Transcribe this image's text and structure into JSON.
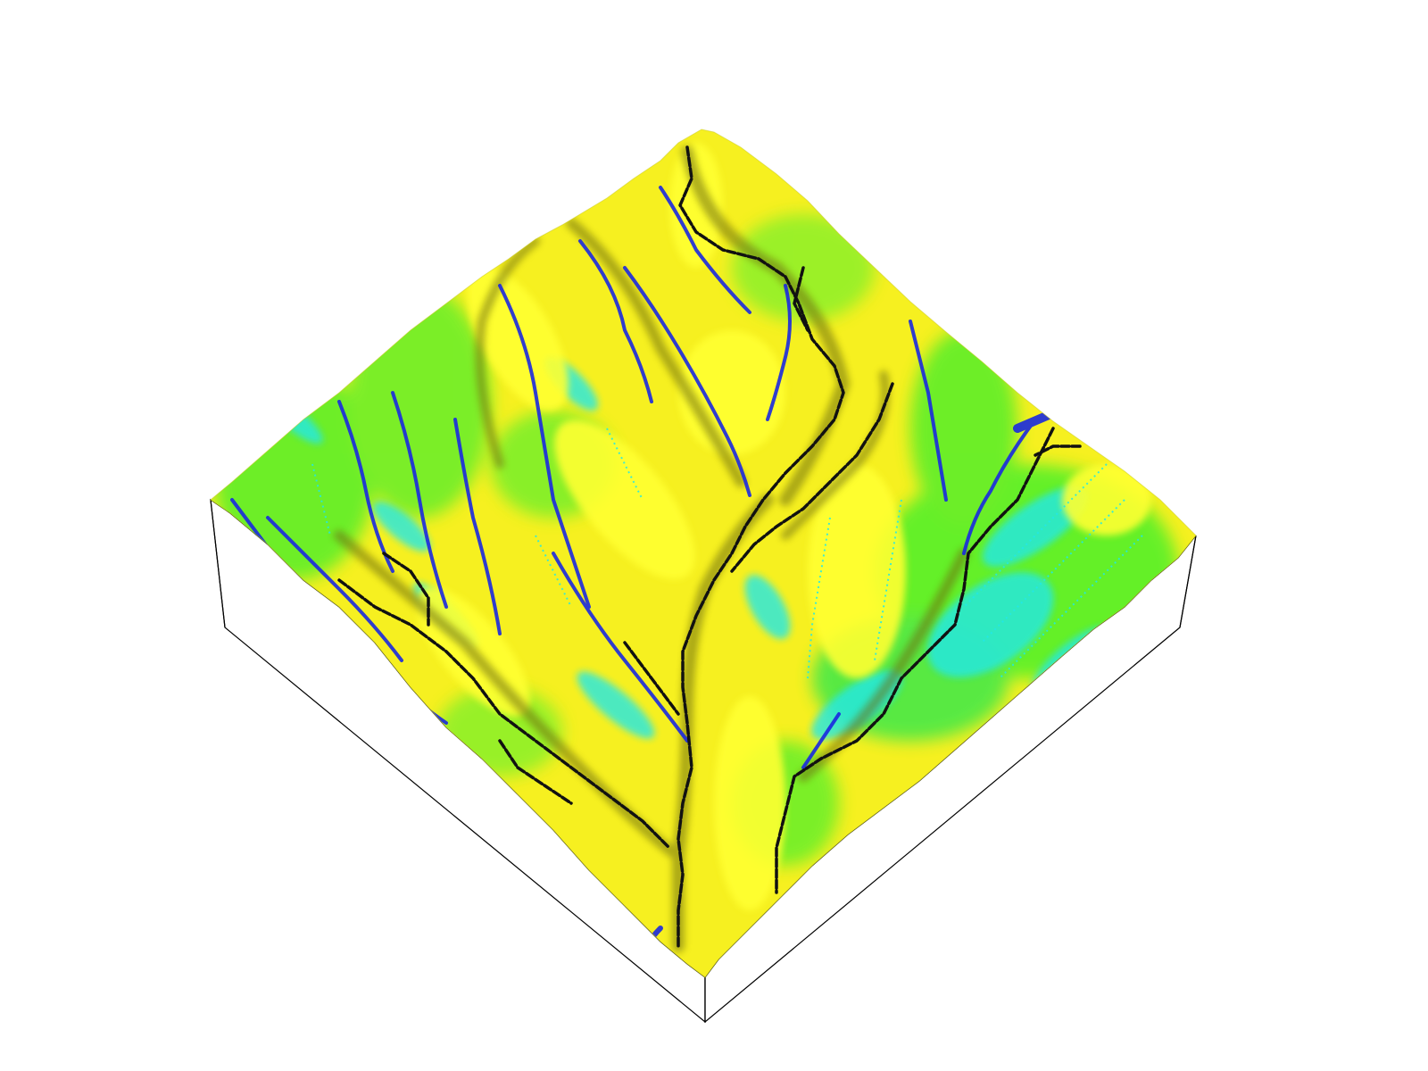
{
  "scene": {
    "kind": "3d-terrain-block",
    "colors": {
      "background": "#ffffff",
      "box_outline": "#000000",
      "box_side": "#ffffff",
      "ridge_yellow": "#ffff1a",
      "slope_green": "#4cf02a",
      "hollow_cyan": "#22e8e8",
      "channel_blue": "#1a28e0",
      "channel_black": "#111111",
      "shadow_olive": "#6e6e10"
    }
  }
}
